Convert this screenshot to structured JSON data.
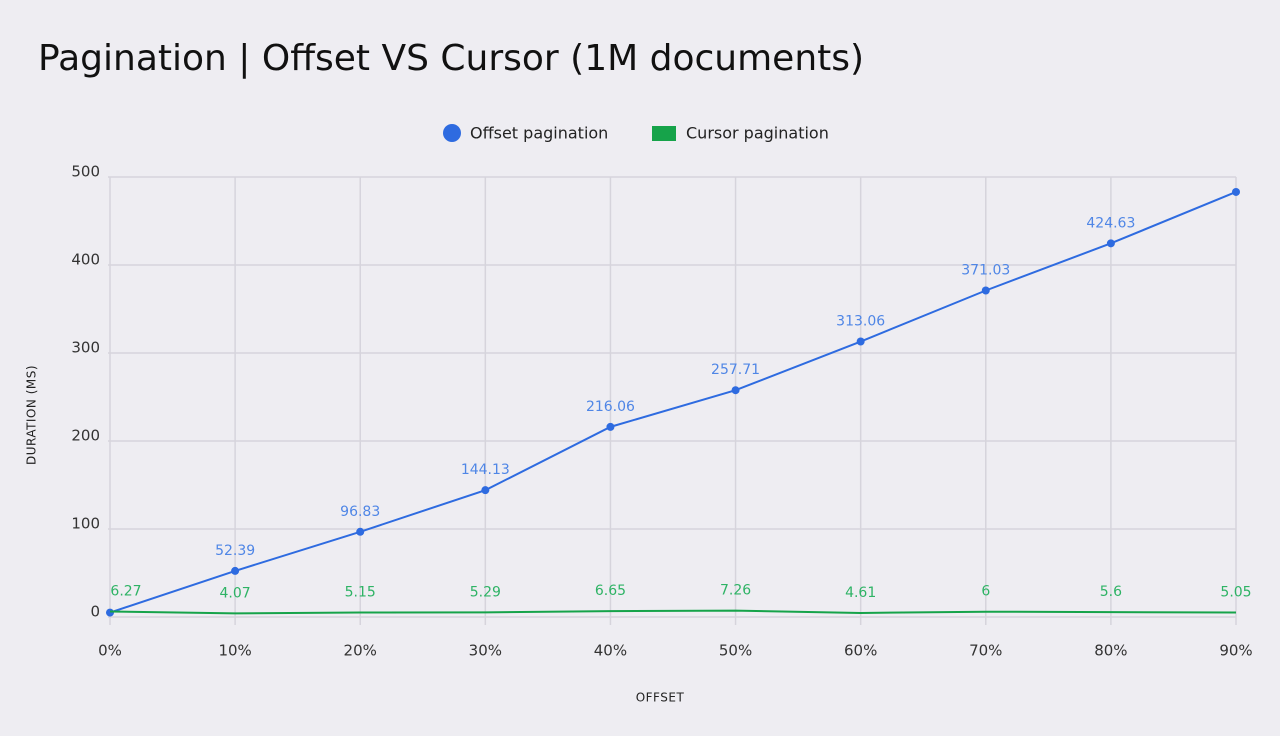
{
  "chart_data": {
    "type": "line",
    "title": "Pagination | Offset VS Cursor (1M documents)",
    "x_label": "OFFSET",
    "y_label": "DURATION (MS)",
    "categories": [
      "0%",
      "10%",
      "20%",
      "30%",
      "40%",
      "50%",
      "60%",
      "70%",
      "80%",
      "90%"
    ],
    "series": [
      {
        "name": "Offset pagination",
        "color": "#2e6be0",
        "label_color": "#4f86e6",
        "marker": "circle",
        "values": [
          5,
          52.39,
          96.83,
          144.13,
          216.06,
          257.71,
          313.06,
          371.03,
          424.63,
          483
        ],
        "value_labels": [
          null,
          "52.39",
          "96.83",
          "144.13",
          "216.06",
          "257.71",
          "313.06",
          "371.03",
          "424.63",
          null
        ]
      },
      {
        "name": "Cursor pagination",
        "color": "#16a34a",
        "label_color": "#2eb365",
        "marker": "square",
        "values": [
          6.27,
          4.07,
          5.15,
          5.29,
          6.65,
          7.26,
          4.61,
          6,
          5.6,
          5.05
        ],
        "value_labels": [
          "6.27",
          "4.07",
          "5.15",
          "5.29",
          "6.65",
          "7.26",
          "4.61",
          "6",
          "5.6",
          "5.05"
        ]
      }
    ],
    "ylim": [
      0,
      500
    ],
    "yticks": [
      0,
      100,
      200,
      300,
      400,
      500
    ],
    "grid": true,
    "legend": "top"
  }
}
